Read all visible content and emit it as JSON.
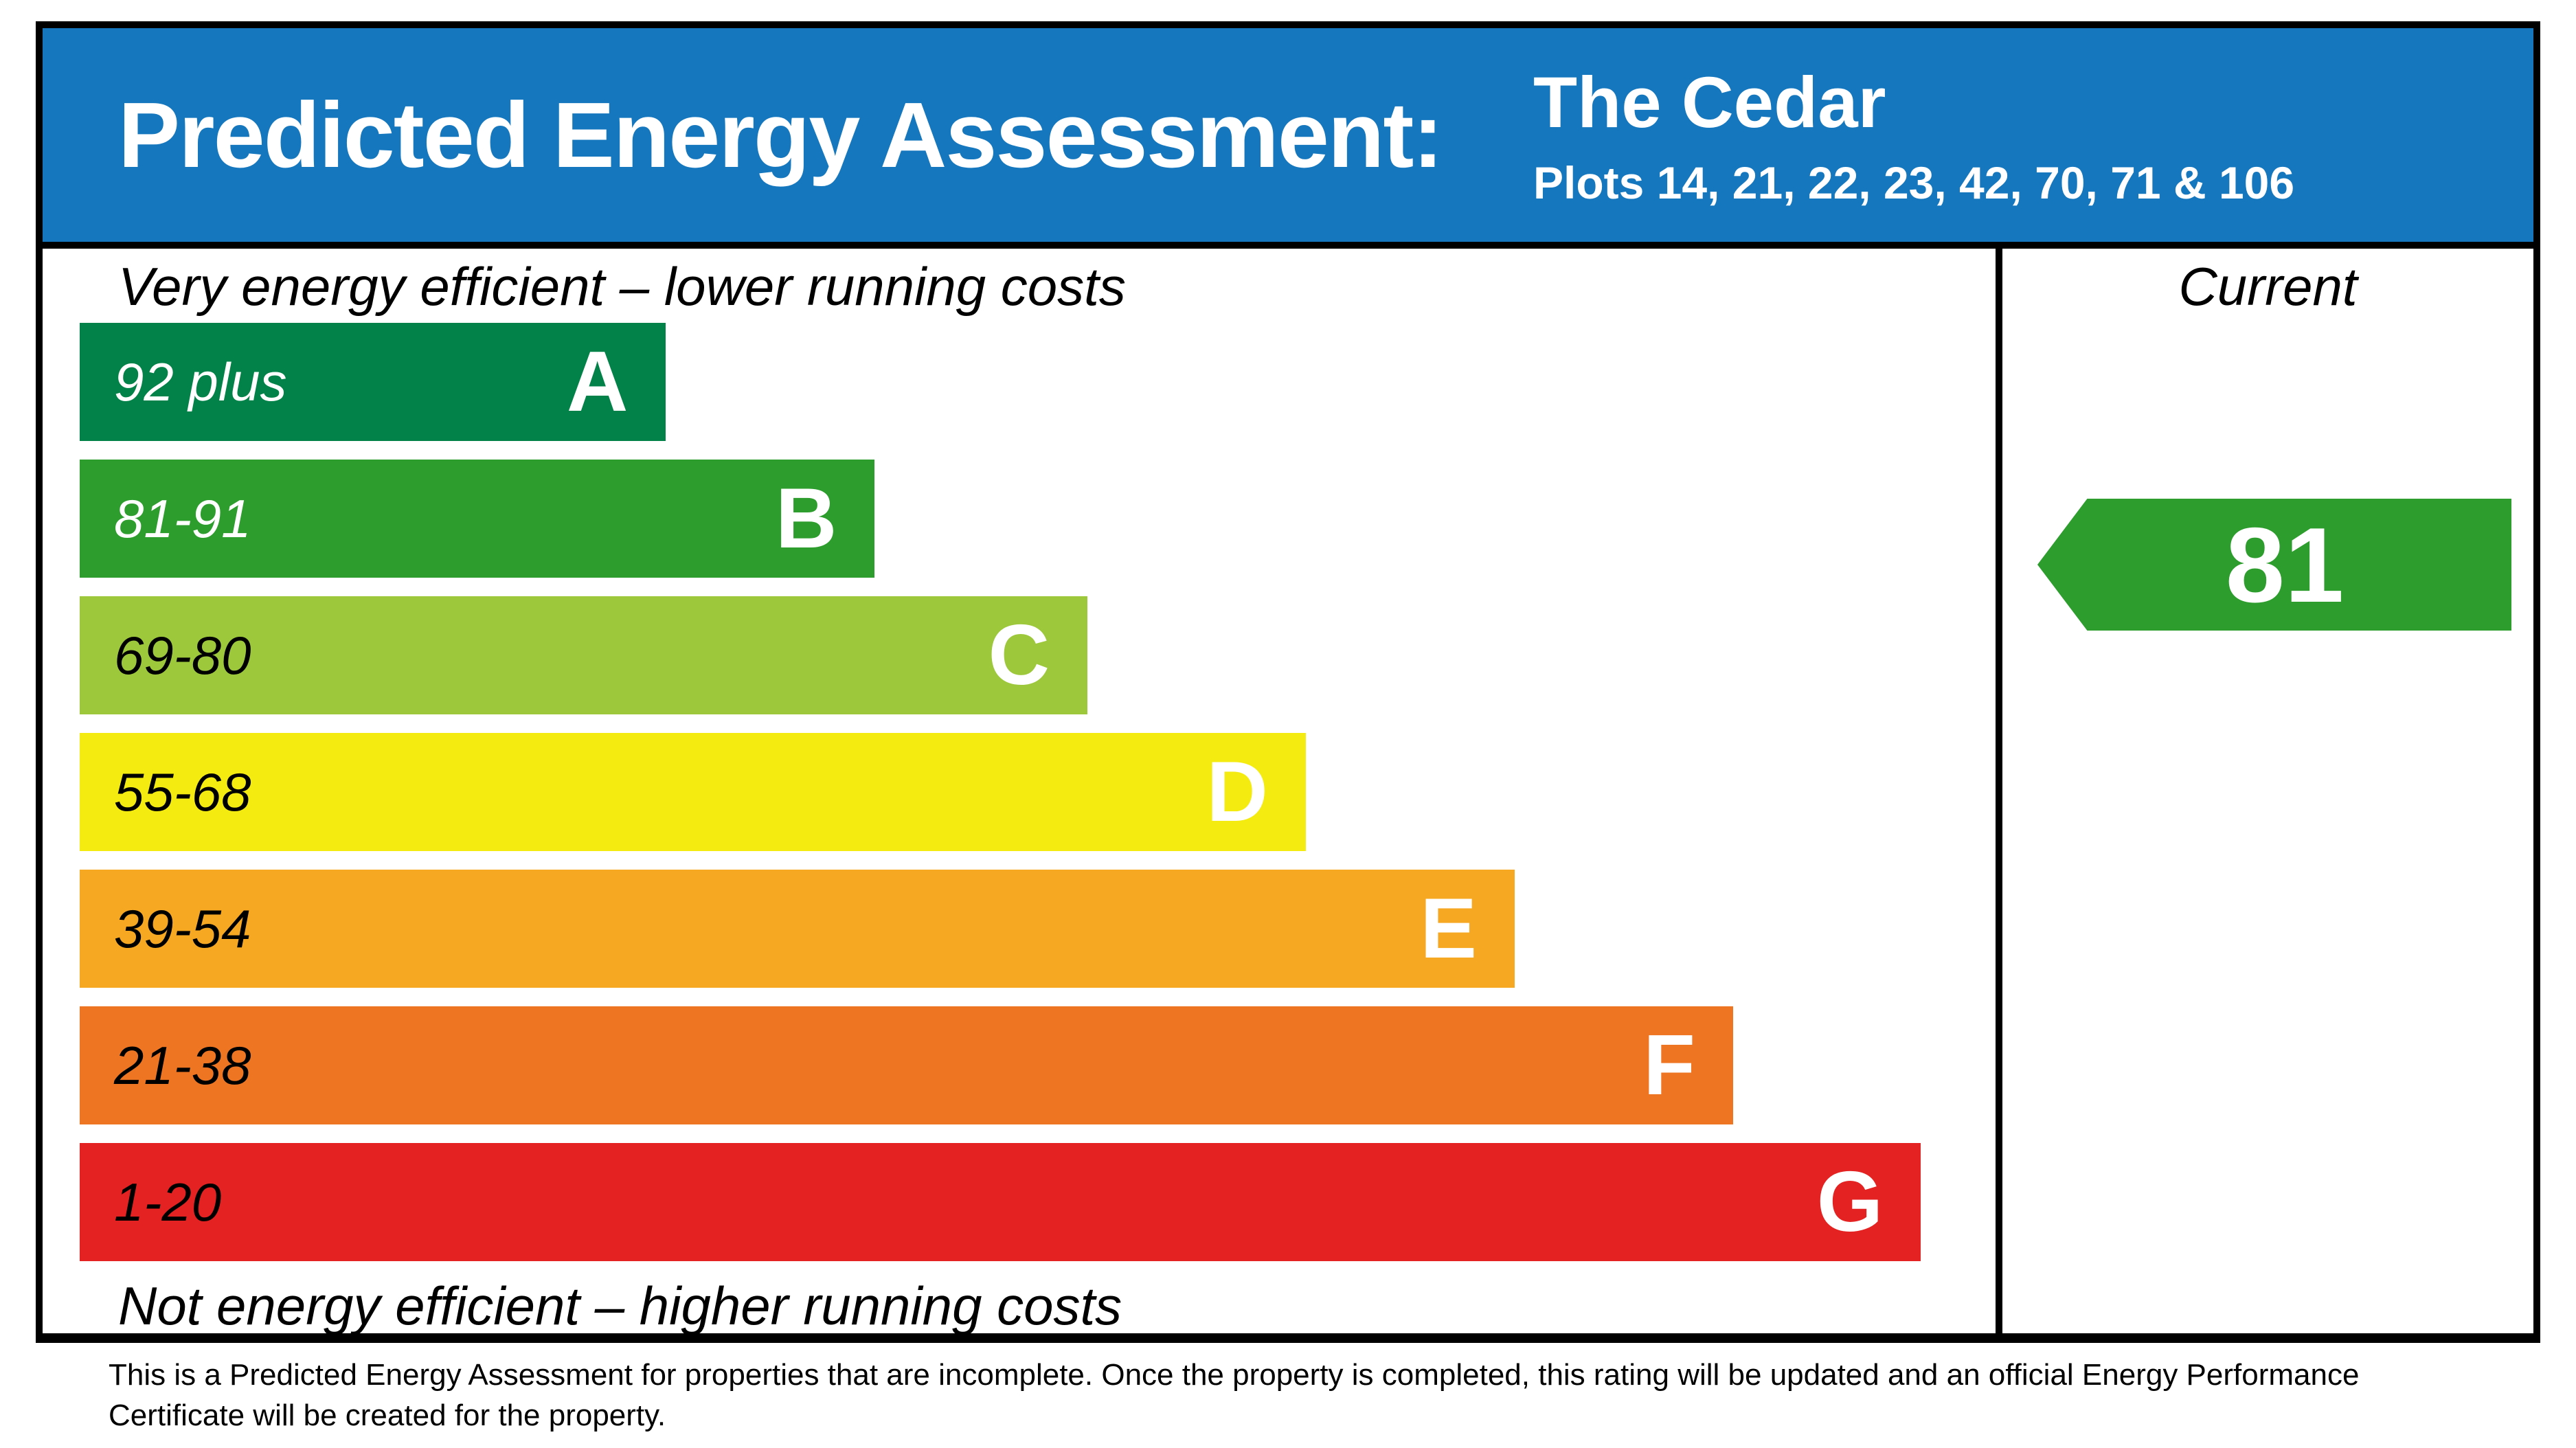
{
  "header": {
    "title": "Predicted Energy Assessment:",
    "property_name": "The Cedar",
    "plots": "Plots 14, 21, 22, 23, 42, 70, 71 & 106",
    "background_color": "#1577BE"
  },
  "chart": {
    "top_note": "Very energy efficient – lower running costs",
    "bottom_note": "Not energy efficient – higher running costs",
    "current_label": "Current",
    "current_value": "81"
  },
  "chart_data": {
    "type": "bar",
    "title": "Predicted Energy Assessment",
    "categories": [
      "A",
      "B",
      "C",
      "D",
      "E",
      "F",
      "G"
    ],
    "bands": [
      {
        "letter": "A",
        "range_label": "92 plus",
        "min": 92,
        "max": 100,
        "color": "#028248",
        "range_text_color": "#FFFFFF",
        "width_pct": 30.6
      },
      {
        "letter": "B",
        "range_label": "81-91",
        "min": 81,
        "max": 91,
        "color": "#2D9D2D",
        "range_text_color": "#FFFFFF",
        "width_pct": 41.5
      },
      {
        "letter": "C",
        "range_label": "69-80",
        "min": 69,
        "max": 80,
        "color": "#9DC83C",
        "range_text_color": "#000000",
        "width_pct": 52.6
      },
      {
        "letter": "D",
        "range_label": "55-68",
        "min": 55,
        "max": 68,
        "color": "#F4EB10",
        "range_text_color": "#000000",
        "width_pct": 64.0
      },
      {
        "letter": "E",
        "range_label": "39-54",
        "min": 39,
        "max": 54,
        "color": "#F6A823",
        "range_text_color": "#000000",
        "width_pct": 74.9
      },
      {
        "letter": "F",
        "range_label": "21-38",
        "min": 21,
        "max": 38,
        "color": "#EE7623",
        "range_text_color": "#000000",
        "width_pct": 86.3
      },
      {
        "letter": "G",
        "range_label": "1-20",
        "min": 1,
        "max": 20,
        "color": "#E32221",
        "range_text_color": "#000000",
        "width_pct": 96.1
      }
    ],
    "current": {
      "value": 81,
      "band": "B",
      "arrow_color": "#2D9D2D",
      "column_label": "Current"
    },
    "legend_position": "right",
    "grid": false
  },
  "footer": {
    "line1": "This is a Predicted Energy Assessment for properties that are incomplete. Once the property is completed, this rating will be updated and an official Energy Performance",
    "line2": "Certificate will be created for the property."
  }
}
